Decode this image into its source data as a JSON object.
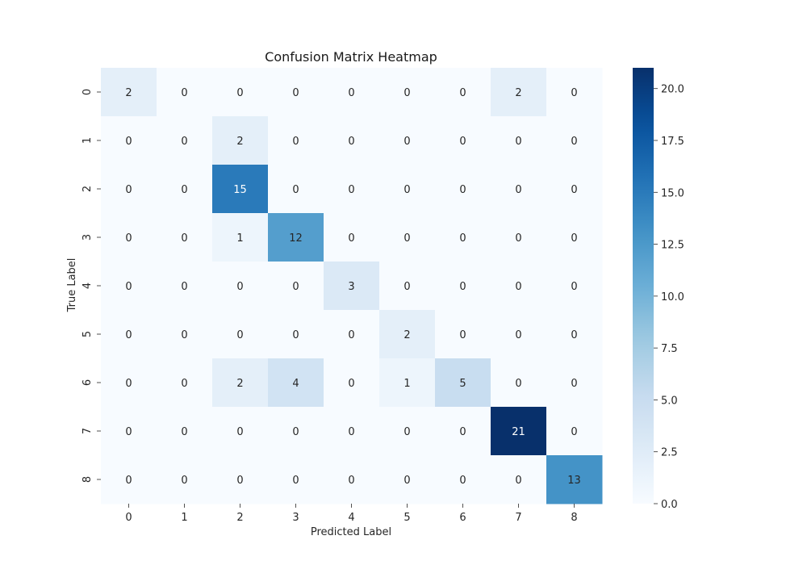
{
  "chart_data": {
    "type": "heatmap",
    "title": "Confusion Matrix Heatmap",
    "xlabel": "Predicted Label",
    "ylabel": "True Label",
    "x_categories": [
      "0",
      "1",
      "2",
      "3",
      "4",
      "5",
      "6",
      "7",
      "8"
    ],
    "y_categories": [
      "0",
      "1",
      "2",
      "3",
      "4",
      "5",
      "6",
      "7",
      "8"
    ],
    "values": [
      [
        2,
        0,
        0,
        0,
        0,
        0,
        0,
        2,
        0
      ],
      [
        0,
        0,
        2,
        0,
        0,
        0,
        0,
        0,
        0
      ],
      [
        0,
        0,
        15,
        0,
        0,
        0,
        0,
        0,
        0
      ],
      [
        0,
        0,
        1,
        12,
        0,
        0,
        0,
        0,
        0
      ],
      [
        0,
        0,
        0,
        0,
        3,
        0,
        0,
        0,
        0
      ],
      [
        0,
        0,
        0,
        0,
        0,
        2,
        0,
        0,
        0
      ],
      [
        0,
        0,
        2,
        4,
        0,
        1,
        5,
        0,
        0
      ],
      [
        0,
        0,
        0,
        0,
        0,
        0,
        0,
        21,
        0
      ],
      [
        0,
        0,
        0,
        0,
        0,
        0,
        0,
        0,
        13
      ]
    ],
    "colorbar": {
      "colormap": "Blues",
      "range": [
        0,
        21
      ],
      "ticks": [
        0.0,
        2.5,
        5.0,
        7.5,
        10.0,
        12.5,
        15.0,
        17.5,
        20.0
      ],
      "tick_labels": [
        "0.0",
        "2.5",
        "5.0",
        "7.5",
        "10.0",
        "12.5",
        "15.0",
        "17.5",
        "20.0"
      ]
    },
    "grid": false
  }
}
